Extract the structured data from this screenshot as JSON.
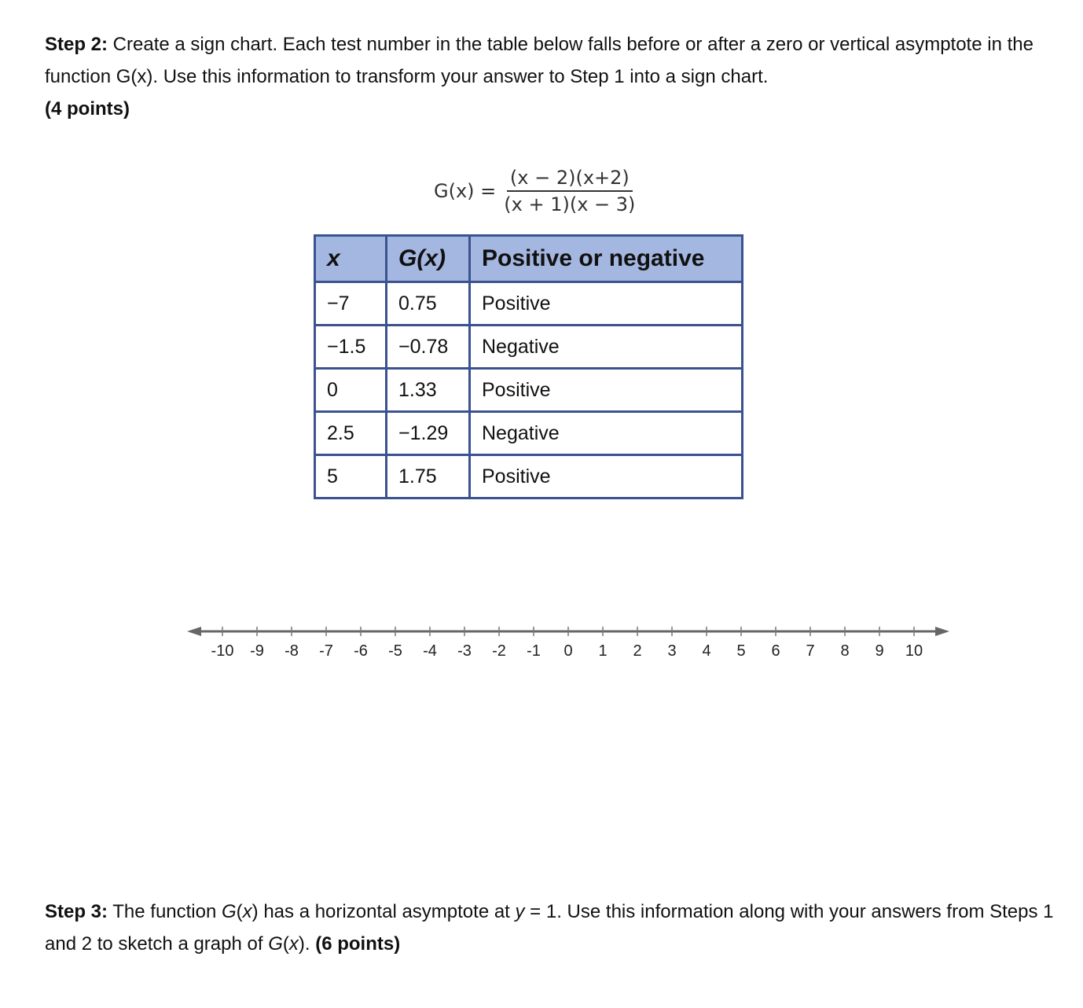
{
  "step2": {
    "label": "Step 2:",
    "text": " Create a sign chart. Each test number in the table below falls before or after a zero or vertical asymptote in the function G(x). Use this information to transform your answer to Step 1 into a sign chart.",
    "points": "(4 points)"
  },
  "formula": {
    "lhs": "G(x) =",
    "numerator": "(x − 2)(x+2)",
    "denominator": "(x + 1)(x − 3)"
  },
  "table": {
    "headers": [
      "x",
      "G(x)",
      "Positive or negative"
    ],
    "rows": [
      [
        "−7",
        "0.75",
        "Positive"
      ],
      [
        "−1.5",
        "−0.78",
        "Negative"
      ],
      [
        "0",
        "1.33",
        "Positive"
      ],
      [
        "2.5",
        "−1.29",
        "Negative"
      ],
      [
        "5",
        "1.75",
        "Positive"
      ]
    ]
  },
  "number_line": {
    "min": -10,
    "max": 10,
    "ticks": [
      "-10",
      "-9",
      "-8",
      "-7",
      "-6",
      "-5",
      "-4",
      "-3",
      "-2",
      "-1",
      "0",
      "1",
      "2",
      "3",
      "4",
      "5",
      "6",
      "7",
      "8",
      "9",
      "10"
    ]
  },
  "step3": {
    "label": "Step 3:",
    "text1": " The function ",
    "g": "G",
    "text2": "(",
    "x": "x",
    "text3": ") has a horizontal asymptote at ",
    "y": "y",
    "text4": " = 1. Use this information along with your answers from Steps 1 and 2 to sketch a graph of ",
    "g2": "G",
    "text5": "(",
    "x2": "x",
    "text6": "). ",
    "points": "(6 points)"
  }
}
